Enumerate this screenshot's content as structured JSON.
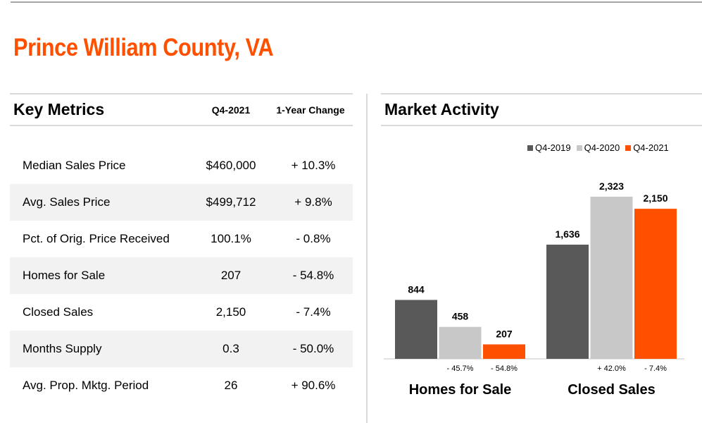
{
  "title": "Prince William County, VA",
  "key_metrics": {
    "heading": "Key Metrics",
    "col_period": "Q4-2021",
    "col_change": "1-Year Change",
    "rows": [
      {
        "label": "Median Sales Price",
        "value": "$460,000",
        "change": "+ 10.3%"
      },
      {
        "label": "Avg. Sales Price",
        "value": "$499,712",
        "change": "+ 9.8%"
      },
      {
        "label": "Pct. of Orig. Price Received",
        "value": "100.1%",
        "change": "- 0.8%"
      },
      {
        "label": "Homes for Sale",
        "value": "207",
        "change": "- 54.8%"
      },
      {
        "label": "Closed Sales",
        "value": "2,150",
        "change": "- 7.4%"
      },
      {
        "label": "Months Supply",
        "value": "0.3",
        "change": "- 50.0%"
      },
      {
        "label": "Avg. Prop. Mktg. Period",
        "value": "26",
        "change": "+ 90.6%"
      }
    ]
  },
  "market_activity": {
    "heading": "Market Activity"
  },
  "chart_data": {
    "type": "bar",
    "title": "Market Activity",
    "groups": [
      {
        "category": "Homes for Sale",
        "values": [
          844,
          458,
          207
        ],
        "labels": [
          "844",
          "458",
          "207"
        ],
        "changes": [
          "",
          "- 45.7%",
          "- 54.8%"
        ]
      },
      {
        "category": "Closed Sales",
        "values": [
          1636,
          2323,
          2150
        ],
        "labels": [
          "1,636",
          "2,323",
          "2,150"
        ],
        "changes": [
          "",
          "+ 42.0%",
          "- 7.4%"
        ]
      }
    ],
    "series": [
      {
        "name": "Q4-2019",
        "color": "#595959"
      },
      {
        "name": "Q4-2020",
        "color": "#c8c8c8"
      },
      {
        "name": "Q4-2021",
        "color": "#ff5000"
      }
    ],
    "legend_position": "top-right",
    "grid": false
  }
}
